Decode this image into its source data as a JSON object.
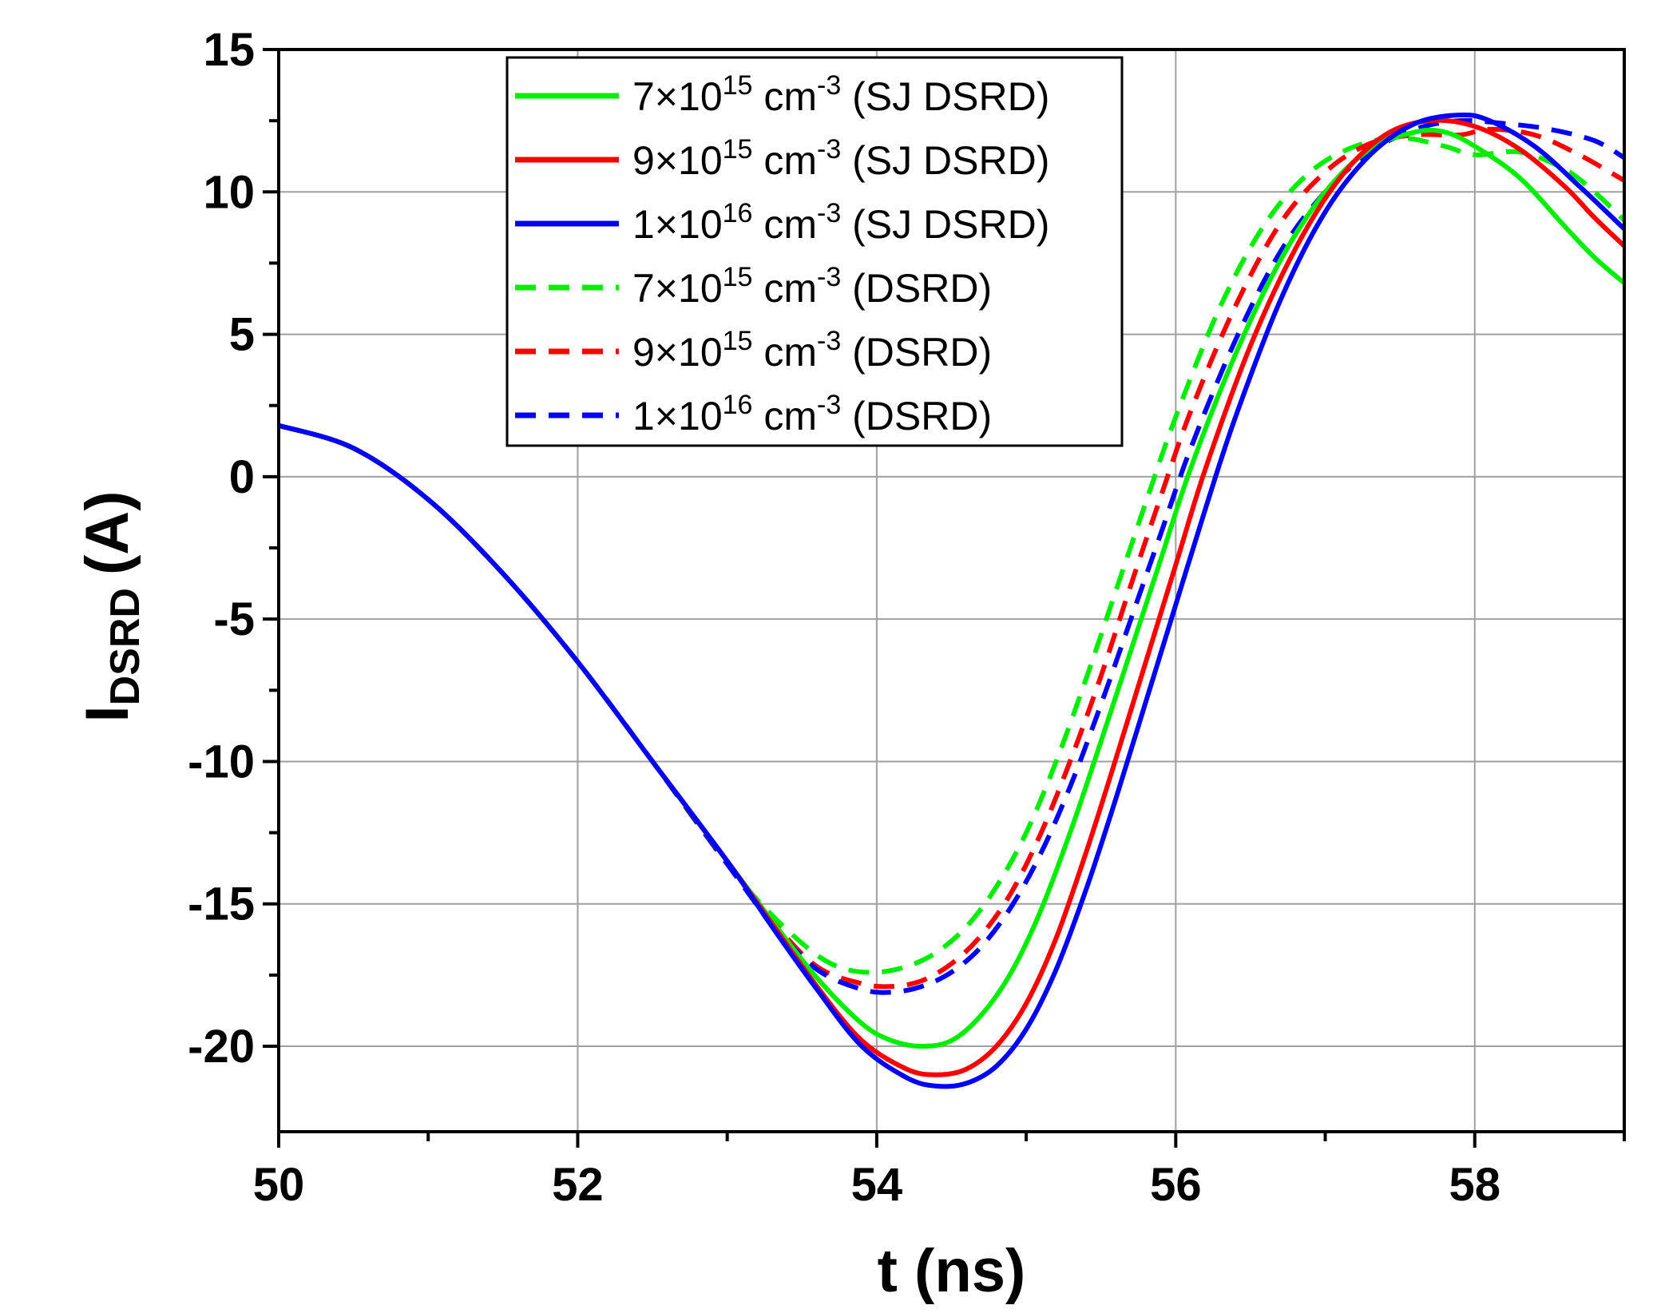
{
  "chart_data": {
    "type": "line",
    "title": "",
    "xlabel": "t (ns)",
    "ylabel_main": "I",
    "ylabel_sub": "DSRD",
    "ylabel_unit": "(A)",
    "xlim": [
      50,
      59
    ],
    "ylim": [
      -23,
      15
    ],
    "xticks": [
      50,
      52,
      54,
      56,
      58
    ],
    "yticks": [
      15,
      10,
      5,
      0,
      -5,
      -10,
      -15,
      -20
    ],
    "grid": true,
    "legend_position": "top-center",
    "series": [
      {
        "name_base": "7×10",
        "name_exp": "15",
        "name_unit": " cm",
        "name_unit_exp": "-3",
        "name_tail": " (SJ DSRD)",
        "color": "#00ee00",
        "dash": "solid",
        "x": [
          50,
          50.5,
          51,
          51.5,
          52,
          52.5,
          53,
          53.3,
          53.6,
          53.9,
          54.1,
          54.3,
          54.5,
          54.7,
          54.9,
          55.1,
          55.3,
          55.5,
          55.7,
          55.9,
          56.1,
          56.4,
          56.7,
          57.0,
          57.3,
          57.6,
          57.8,
          58.0,
          58.3,
          58.6,
          58.8,
          59.0
        ],
        "y": [
          1.8,
          1.0,
          -0.8,
          -3.4,
          -6.5,
          -10.0,
          -13.5,
          -15.6,
          -17.6,
          -19.2,
          -19.8,
          -20.0,
          -19.8,
          -18.9,
          -17.4,
          -15.2,
          -12.4,
          -9.3,
          -6.1,
          -2.9,
          0.3,
          4.3,
          7.6,
          10.0,
          11.5,
          12.1,
          12.1,
          11.6,
          10.5,
          8.8,
          7.7,
          6.8
        ]
      },
      {
        "name_base": "9×10",
        "name_exp": "15",
        "name_unit": " cm",
        "name_unit_exp": "-3",
        "name_tail": " (SJ DSRD)",
        "color": "#ff0000",
        "dash": "solid",
        "x": [
          50,
          50.5,
          51,
          51.5,
          52,
          52.5,
          53,
          53.3,
          53.6,
          53.9,
          54.2,
          54.4,
          54.6,
          54.8,
          55.0,
          55.2,
          55.4,
          55.6,
          55.8,
          56.0,
          56.2,
          56.5,
          56.8,
          57.1,
          57.4,
          57.7,
          58.0,
          58.3,
          58.6,
          58.8,
          59.0
        ],
        "y": [
          1.8,
          1.0,
          -0.8,
          -3.4,
          -6.5,
          -10.0,
          -13.5,
          -15.7,
          -17.9,
          -19.8,
          -20.8,
          -21.0,
          -20.8,
          -20.0,
          -18.5,
          -16.2,
          -13.2,
          -9.9,
          -6.5,
          -3.1,
          0.3,
          4.6,
          8.0,
          10.5,
          12.0,
          12.5,
          12.3,
          11.5,
          10.2,
          9.1,
          8.1
        ]
      },
      {
        "name_base": "1×10",
        "name_exp": "16",
        "name_unit": " cm",
        "name_unit_exp": "-3",
        "name_tail": " (SJ DSRD)",
        "color": "#0000ff",
        "dash": "solid",
        "x": [
          50,
          50.5,
          51,
          51.5,
          52,
          52.5,
          53,
          53.3,
          53.6,
          53.9,
          54.2,
          54.4,
          54.6,
          54.8,
          55.0,
          55.2,
          55.4,
          55.6,
          55.8,
          56.0,
          56.2,
          56.4,
          56.7,
          57.0,
          57.3,
          57.6,
          57.9,
          58.1,
          58.4,
          58.7,
          59.0
        ],
        "y": [
          1.8,
          1.0,
          -0.8,
          -3.4,
          -6.5,
          -10.0,
          -13.5,
          -15.8,
          -18.0,
          -20.0,
          -21.1,
          -21.4,
          -21.3,
          -20.7,
          -19.4,
          -17.3,
          -14.5,
          -11.3,
          -7.9,
          -4.5,
          -1.1,
          2.1,
          6.2,
          9.3,
          11.3,
          12.4,
          12.7,
          12.5,
          11.6,
          10.2,
          8.7
        ]
      },
      {
        "name_base": "7×10",
        "name_exp": "15",
        "name_unit": " cm",
        "name_unit_exp": "-3",
        "name_tail": " (DSRD)",
        "color": "#00ee00",
        "dash": "dashed",
        "x": [
          50,
          50.5,
          51,
          51.5,
          52,
          52.5,
          53,
          53.3,
          53.6,
          53.8,
          54.0,
          54.2,
          54.4,
          54.6,
          54.8,
          55.0,
          55.2,
          55.4,
          55.6,
          55.8,
          56.0,
          56.3,
          56.6,
          56.9,
          57.2,
          57.5,
          57.8,
          58.0,
          58.3,
          58.6,
          58.8,
          59.0
        ],
        "y": [
          1.8,
          1.0,
          -0.8,
          -3.4,
          -6.5,
          -10.0,
          -13.6,
          -15.4,
          -16.8,
          -17.3,
          -17.4,
          -17.2,
          -16.7,
          -15.8,
          -14.4,
          -12.5,
          -10.0,
          -7.1,
          -4.0,
          -0.9,
          2.1,
          6.0,
          8.9,
          10.7,
          11.6,
          11.9,
          11.6,
          11.3,
          11.4,
          10.8,
          10.0,
          9.0
        ]
      },
      {
        "name_base": "9×10",
        "name_exp": "15",
        "name_unit": " cm",
        "name_unit_exp": "-3",
        "name_tail": " (DSRD)",
        "color": "#ff0000",
        "dash": "dashed",
        "x": [
          50,
          50.5,
          51,
          51.5,
          52,
          52.5,
          53,
          53.3,
          53.6,
          53.9,
          54.1,
          54.3,
          54.5,
          54.7,
          54.9,
          55.1,
          55.3,
          55.5,
          55.7,
          55.9,
          56.1,
          56.4,
          56.7,
          57.0,
          57.3,
          57.6,
          57.9,
          58.1,
          58.4,
          58.7,
          59.0
        ],
        "y": [
          1.8,
          1.0,
          -0.8,
          -3.4,
          -6.5,
          -10.0,
          -13.6,
          -15.6,
          -17.2,
          -17.8,
          -17.9,
          -17.7,
          -17.1,
          -16.1,
          -14.6,
          -12.5,
          -9.9,
          -7.0,
          -3.8,
          -0.7,
          2.3,
          6.0,
          8.9,
          10.7,
          11.7,
          12.0,
          12.0,
          12.2,
          12.0,
          11.3,
          10.4
        ]
      },
      {
        "name_base": "1×10",
        "name_exp": "16",
        "name_unit": " cm",
        "name_unit_exp": "-3",
        "name_tail": " (DSRD)",
        "color": "#0000ff",
        "dash": "dashed",
        "x": [
          50,
          50.5,
          51,
          51.5,
          52,
          52.5,
          53,
          53.3,
          53.6,
          53.9,
          54.1,
          54.3,
          54.5,
          54.7,
          54.9,
          55.1,
          55.3,
          55.5,
          55.7,
          55.9,
          56.1,
          56.4,
          56.7,
          57.0,
          57.3,
          57.6,
          57.9,
          58.2,
          58.5,
          58.8,
          59.0
        ],
        "y": [
          1.8,
          1.0,
          -0.8,
          -3.4,
          -6.5,
          -10.0,
          -13.6,
          -15.7,
          -17.3,
          -18.0,
          -18.1,
          -17.9,
          -17.4,
          -16.5,
          -15.1,
          -13.2,
          -10.8,
          -8.0,
          -5.0,
          -2.0,
          1.0,
          4.8,
          7.9,
          10.0,
          11.4,
          12.2,
          12.5,
          12.4,
          12.2,
          11.8,
          11.2
        ]
      }
    ]
  }
}
